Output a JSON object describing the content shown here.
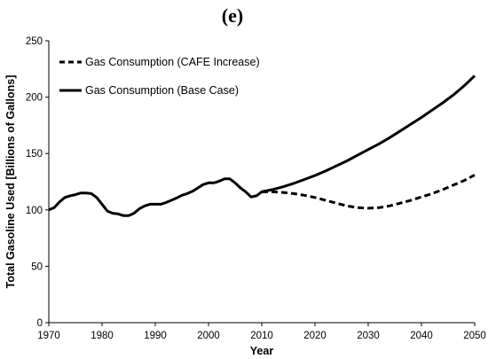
{
  "chart_data": {
    "type": "line",
    "title": "(e)",
    "xlabel": "Year",
    "ylabel": "Total Gasoline Used [Billions of Gallons]",
    "xlim": [
      1970,
      2050
    ],
    "ylim": [
      0,
      250
    ],
    "x_ticks": [
      1970,
      1980,
      1990,
      2000,
      2010,
      2020,
      2030,
      2040,
      2050
    ],
    "y_ticks": [
      0,
      50,
      100,
      150,
      200,
      250
    ],
    "grid": false,
    "legend_position": "top-left",
    "series": [
      {
        "name": "Gas Consumption (CAFE Increase)",
        "style": "dashed",
        "color": "#000000",
        "x": [
          2010,
          2012,
          2014,
          2016,
          2018,
          2020,
          2022,
          2024,
          2026,
          2028,
          2030,
          2032,
          2034,
          2036,
          2038,
          2040,
          2042,
          2044,
          2046,
          2048,
          2050
        ],
        "y": [
          116,
          116,
          115.5,
          114.5,
          113,
          111,
          108.5,
          106,
          103.5,
          102,
          101.5,
          102,
          103.5,
          106,
          108.5,
          111.5,
          114.5,
          118,
          122,
          126,
          131
        ]
      },
      {
        "name": "Gas Consumption (Base Case)",
        "style": "solid",
        "color": "#000000",
        "x": [
          1970,
          1971,
          1972,
          1973,
          1974,
          1975,
          1976,
          1977,
          1978,
          1979,
          1980,
          1981,
          1982,
          1983,
          1984,
          1985,
          1986,
          1987,
          1988,
          1989,
          1990,
          1991,
          1992,
          1993,
          1994,
          1995,
          1996,
          1997,
          1998,
          1999,
          2000,
          2001,
          2002,
          2003,
          2004,
          2005,
          2006,
          2007,
          2008,
          2009,
          2010,
          2012,
          2014,
          2016,
          2018,
          2020,
          2022,
          2024,
          2026,
          2028,
          2030,
          2032,
          2034,
          2036,
          2038,
          2040,
          2042,
          2044,
          2046,
          2048,
          2050
        ],
        "y": [
          100,
          102,
          107,
          111,
          112.5,
          113.5,
          115,
          115,
          114.5,
          111,
          105,
          99,
          97,
          96.5,
          95,
          95,
          97,
          101,
          103.5,
          105,
          105,
          105,
          106.5,
          108.5,
          110.5,
          113,
          114.5,
          116.5,
          119.5,
          122.5,
          124,
          124,
          125.5,
          127.5,
          127.5,
          124,
          119.5,
          116,
          111.5,
          112.5,
          116,
          118,
          120.5,
          123.5,
          127,
          130.5,
          134.5,
          139,
          143.5,
          148.5,
          153.5,
          158.5,
          164,
          170,
          176,
          182,
          188.5,
          195,
          202,
          210,
          219
        ]
      }
    ]
  }
}
